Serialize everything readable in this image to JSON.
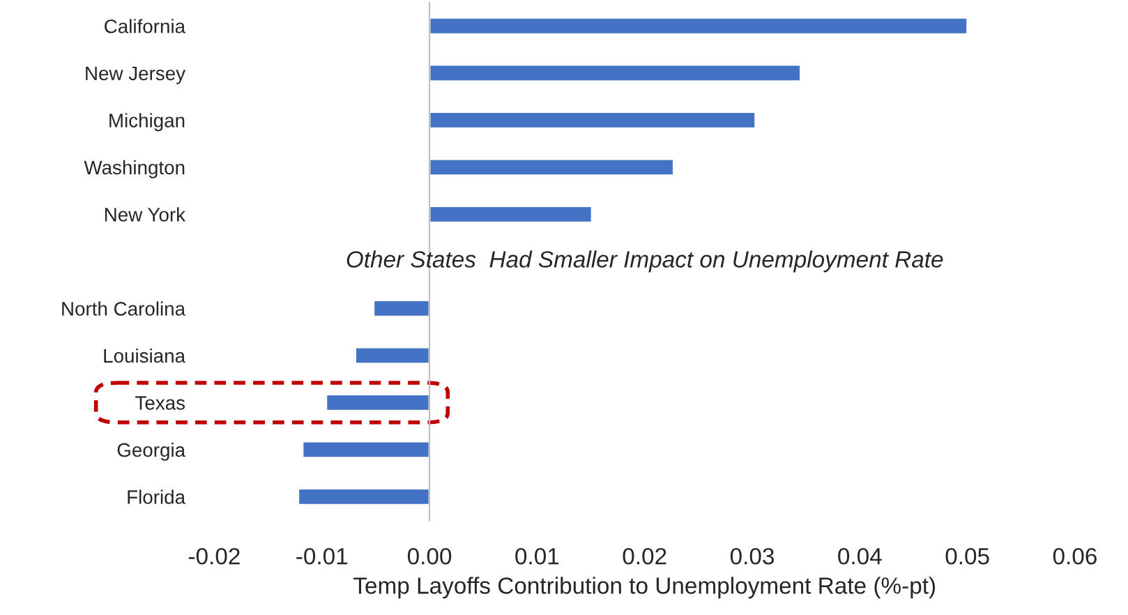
{
  "chart_data": {
    "type": "bar",
    "orientation": "horizontal",
    "xlabel": "Temp Layoffs Contribution to Unemployment Rate (%-pt)",
    "categories": [
      "California",
      "New Jersey",
      "Michigan",
      "Washington",
      "New York",
      null,
      "North Carolina",
      "Louisiana",
      "Texas",
      "Georgia",
      "Florida"
    ],
    "values": [
      0.05,
      0.0345,
      0.0303,
      0.0227,
      0.0151,
      null,
      -0.0052,
      -0.0069,
      -0.0096,
      -0.0118,
      -0.0122
    ],
    "color": "#4472c4",
    "xlim": [
      -0.02,
      0.06
    ],
    "xticks": [
      {
        "value": -0.02,
        "label": "-0.02"
      },
      {
        "value": -0.01,
        "label": "-0.01"
      },
      {
        "value": 0,
        "label": "0.00"
      },
      {
        "value": 0.01,
        "label": "0.01"
      },
      {
        "value": 0.02,
        "label": "0.02"
      },
      {
        "value": 0.03,
        "label": "0.03"
      },
      {
        "value": 0.04,
        "label": "0.04"
      },
      {
        "value": 0.05,
        "label": "0.05"
      },
      {
        "value": 0.06,
        "label": "0.06"
      }
    ],
    "annotations": [
      "Other States  Had Smaller Impact on Unemployment Rate"
    ],
    "legend": false
  }
}
